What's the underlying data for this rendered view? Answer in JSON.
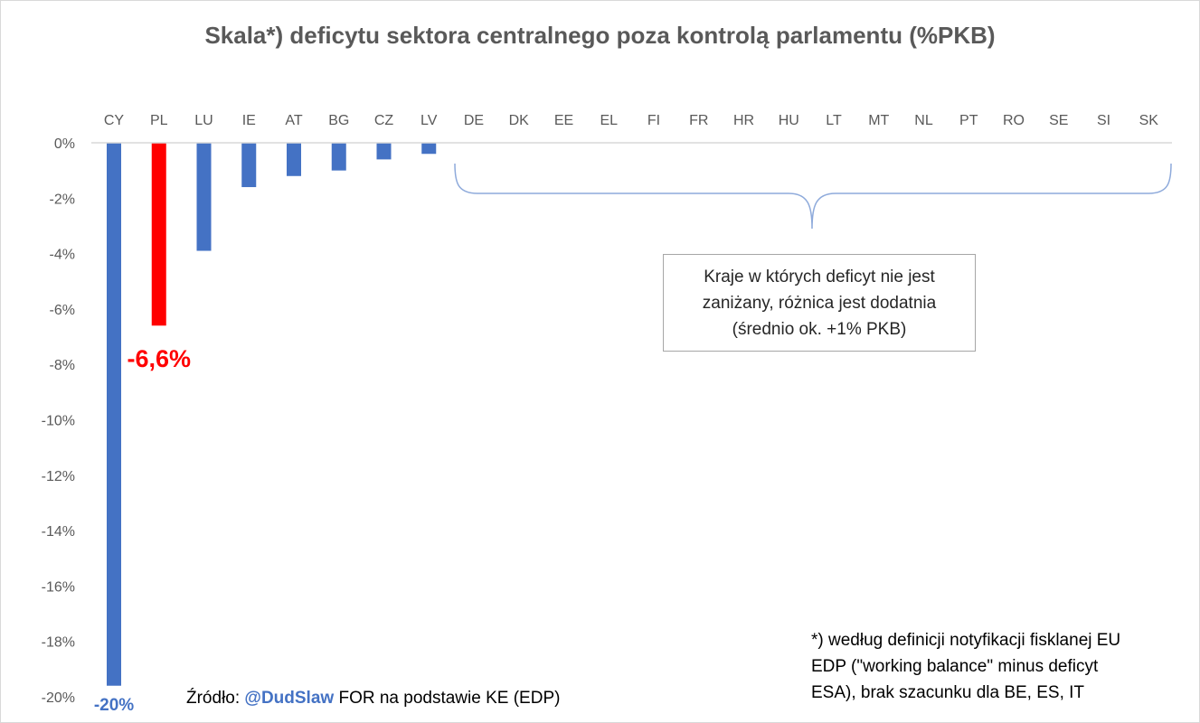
{
  "chart_data": {
    "type": "bar",
    "title": "Skala*) deficytu sektora centralnego poza kontrolą parlamentu (%PKB)",
    "categories": [
      "CY",
      "PL",
      "LU",
      "IE",
      "AT",
      "BG",
      "CZ",
      "LV",
      "DE",
      "DK",
      "EE",
      "EL",
      "FI",
      "FR",
      "HR",
      "HU",
      "LT",
      "MT",
      "NL",
      "PT",
      "RO",
      "SE",
      "SI",
      "SK"
    ],
    "series": [
      {
        "values": [
          -19.6,
          -6.6,
          -3.9,
          -1.6,
          -1.2,
          -1.0,
          -0.6,
          -0.4,
          null,
          null,
          null,
          null,
          null,
          null,
          null,
          null,
          null,
          null,
          null,
          null,
          null,
          null,
          null,
          null
        ]
      }
    ],
    "highlight_category": "PL",
    "ylim": [
      -20,
      0
    ],
    "yticks": [
      "0%",
      "-2%",
      "-4%",
      "-6%",
      "-8%",
      "-10%",
      "-12%",
      "-14%",
      "-16%",
      "-18%",
      "-20%"
    ],
    "data_labels": [
      {
        "category": "PL",
        "text": "-6,6%"
      },
      {
        "category": "CY",
        "text": "-20%"
      }
    ],
    "grid": false,
    "legend": "none",
    "colors": {
      "bar": "#4472c4",
      "highlight": "#ff0000",
      "axis": "#d9d9d9",
      "brace": "#8eaadb"
    }
  },
  "annotation": {
    "lines": [
      "Kraje w których deficyt nie jest",
      "zaniżany, różnica jest dodatnia",
      "(średnio ok. +1% PKB)"
    ]
  },
  "footnote": {
    "lines": [
      "*) według definicji notyfikacji fisklanej EU",
      "EDP (\"working balance\" minus deficyt",
      "ESA), brak szacunku dla BE, ES, IT"
    ]
  },
  "source": {
    "prefix": "Źródło: ",
    "handle": "@DudSlaw",
    "suffix": " FOR na podstawie KE (EDP)"
  }
}
